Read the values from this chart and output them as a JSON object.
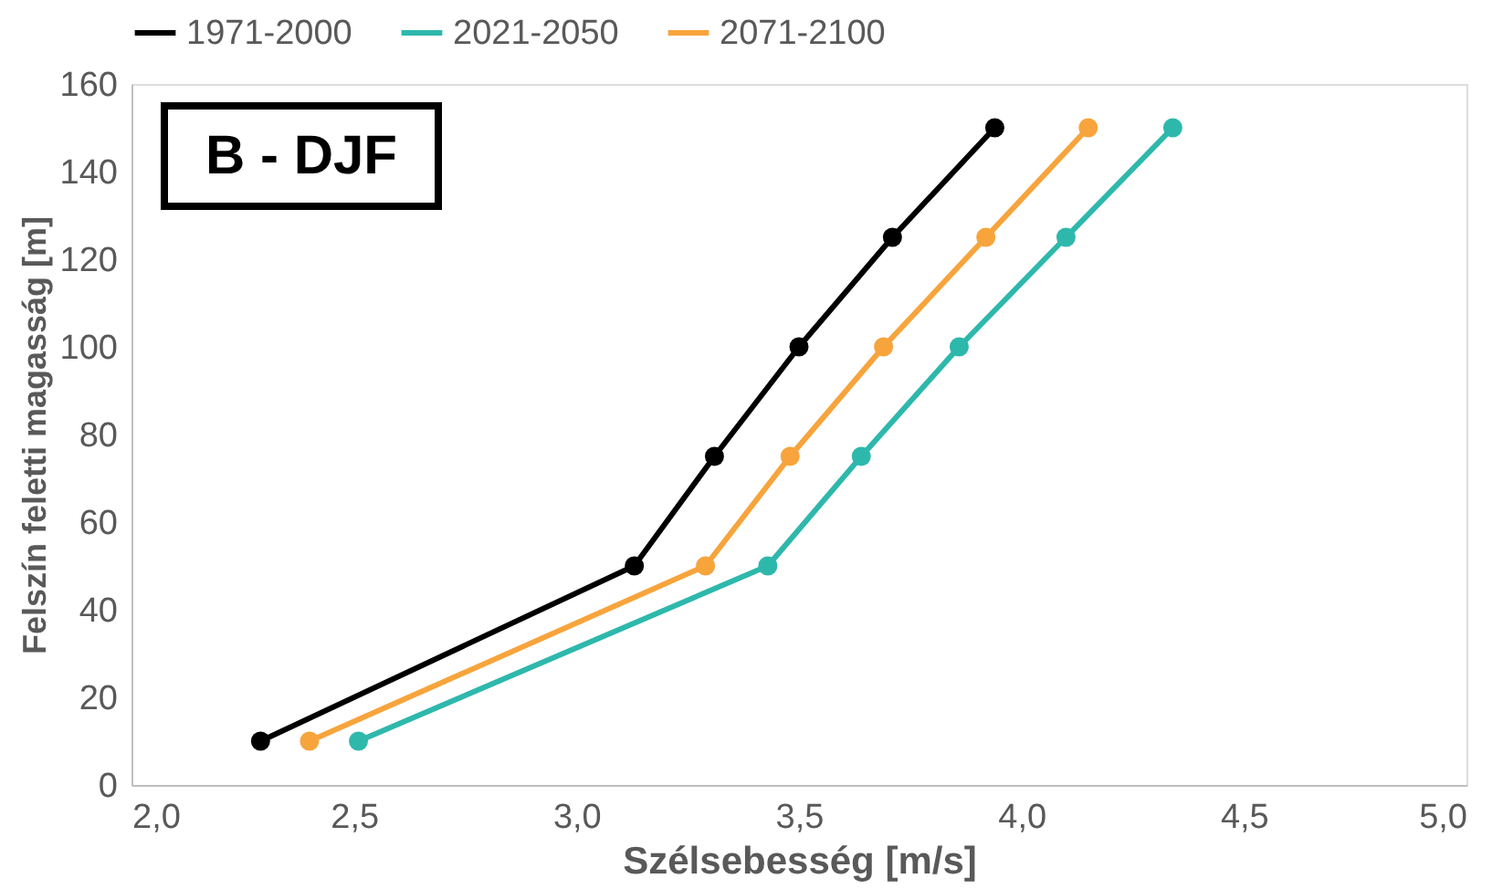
{
  "chart_data": {
    "type": "line",
    "xlabel": "Szélsebesség [m/s]",
    "ylabel": "Felszín feletti magasság [m]",
    "annotations": [
      "B - DJF"
    ],
    "series": [
      {
        "name": "1971-2000",
        "color": "#000000",
        "x": [
          2.29,
          3.13,
          3.31,
          3.5,
          3.71,
          3.94
        ],
        "values": [
          10,
          50,
          75,
          100,
          125,
          150
        ]
      },
      {
        "name": "2021-2050",
        "color": "#2eb8ac",
        "x": [
          2.51,
          3.43,
          3.64,
          3.86,
          4.1,
          4.34
        ],
        "values": [
          10,
          50,
          75,
          100,
          125,
          150
        ]
      },
      {
        "name": "2071-2100",
        "color": "#f7a43c",
        "x": [
          2.4,
          3.29,
          3.48,
          3.69,
          3.92,
          4.15
        ],
        "values": [
          10,
          50,
          75,
          100,
          125,
          150
        ]
      }
    ],
    "xlim": [
      2,
      5
    ],
    "xticks": [
      {
        "value": 2,
        "label": "2,0"
      },
      {
        "value": 2.5,
        "label": "2,5"
      },
      {
        "value": 3,
        "label": "3,0"
      },
      {
        "value": 3.5,
        "label": "3,5"
      },
      {
        "value": 4,
        "label": "4,0"
      },
      {
        "value": 4.5,
        "label": "4,5"
      },
      {
        "value": 5,
        "label": "5,0"
      }
    ],
    "ylim": [
      0,
      160
    ],
    "yticks": [
      0,
      20,
      40,
      60,
      80,
      100,
      120,
      140,
      160
    ],
    "grid": false,
    "legend": "top",
    "marker": "circle",
    "line_style": "solid"
  }
}
